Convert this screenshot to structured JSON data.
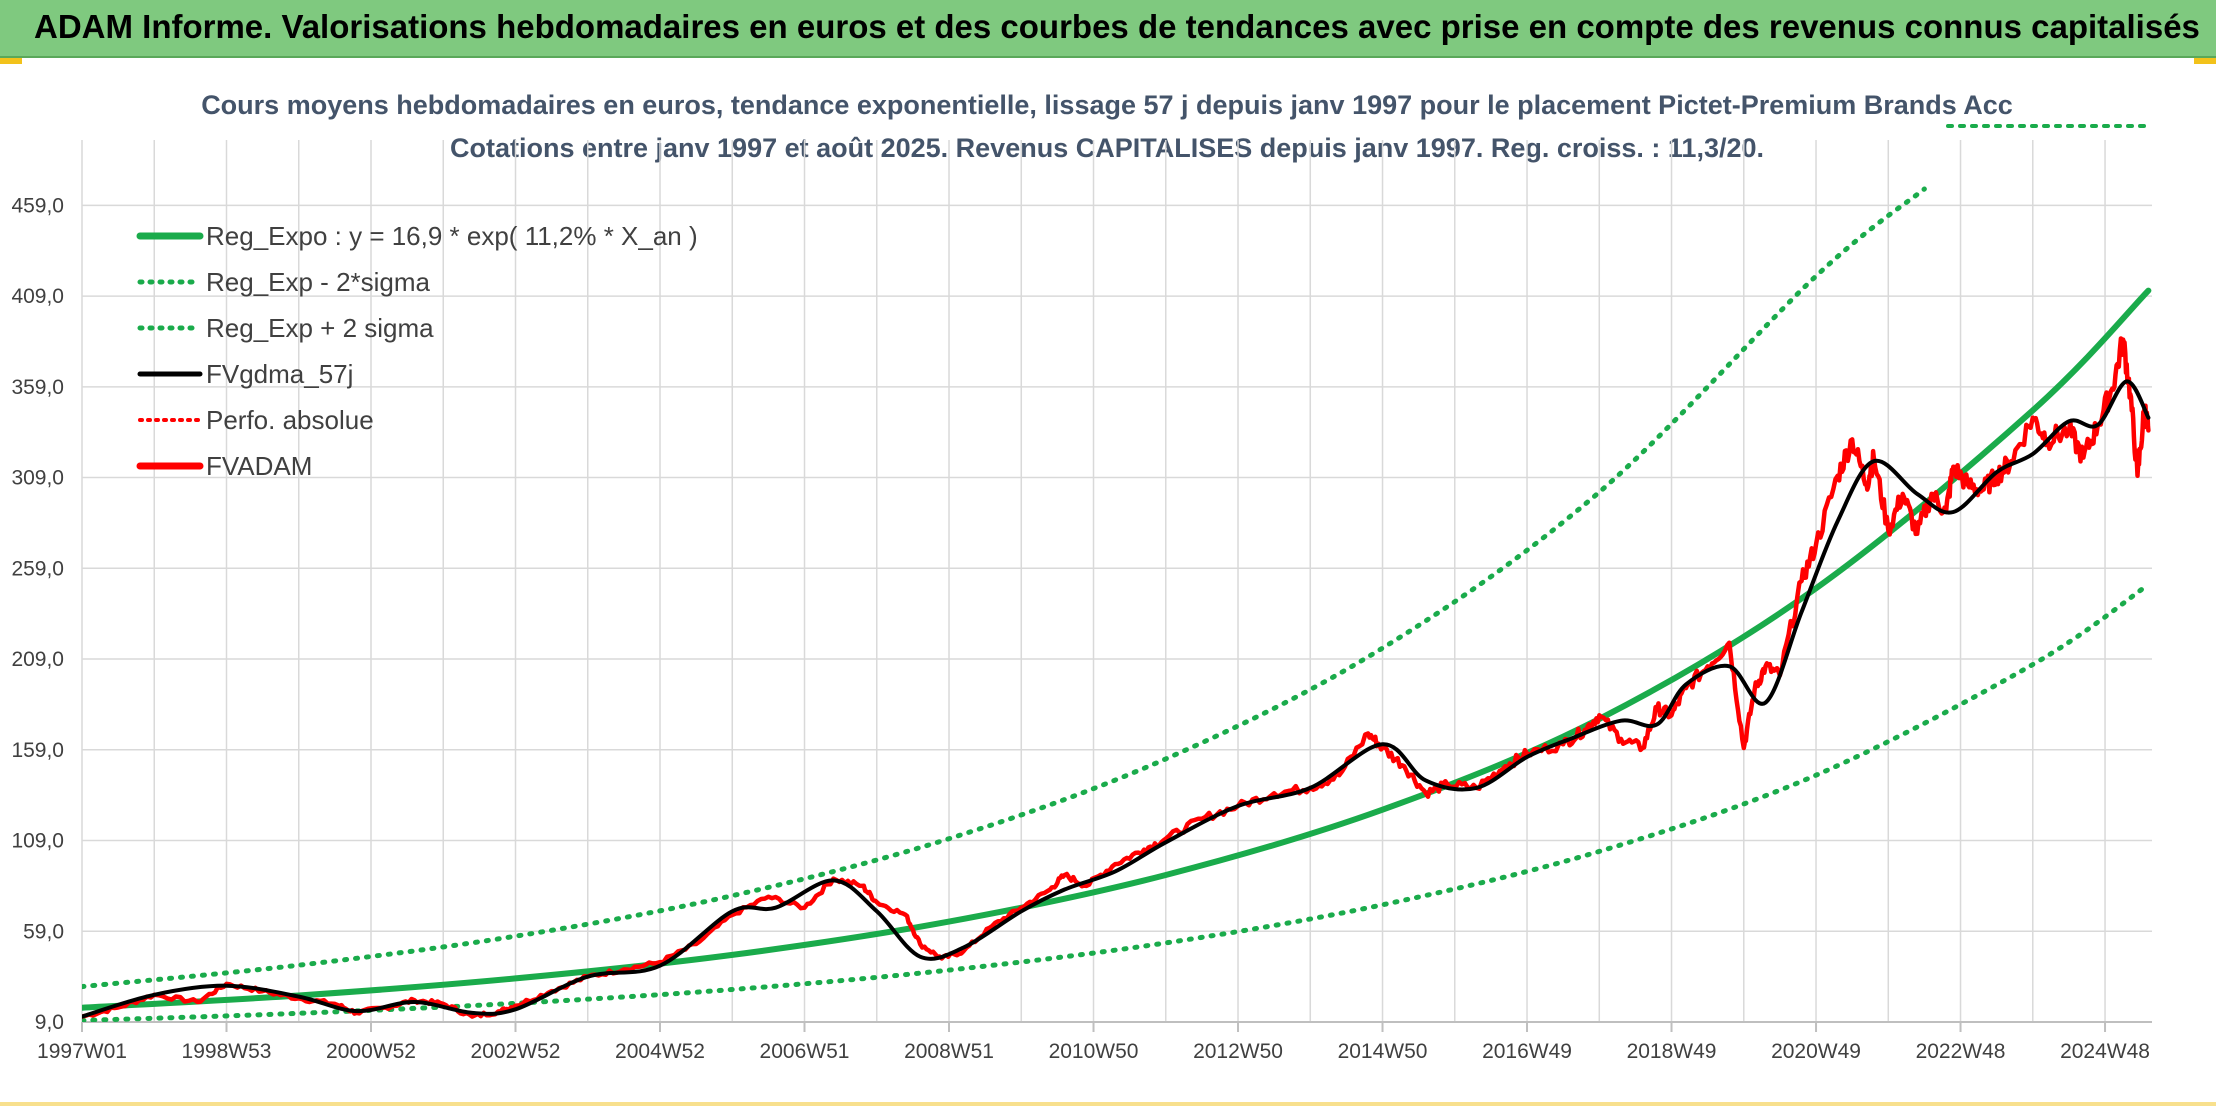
{
  "header": {
    "title": "ADAM Informe. Valorisations hebdomadaires en euros et des courbes de tendances avec prise en compte des revenus connus capitalisés"
  },
  "colors": {
    "header_bg": "#7fc97f",
    "trend_green": "#1aab4b",
    "smooth_black": "#000000",
    "fvadam_red": "#ff0000",
    "grid": "#d9d9d9",
    "text": "#404040"
  },
  "chart_data": {
    "type": "line",
    "title_line1": "Cours moyens hebdomadaires en euros, tendance exponentielle, lissage 57 j depuis janv 1997 pour le placement Pictet-Premium Brands Acc",
    "title_line2": "Cotations entre janv 1997 et août 2025. Revenus CAPITALISES depuis janv 1997. Reg. croiss. : 11,3/20.",
    "xlabel": "",
    "ylabel": "",
    "ylim": [
      9,
      495
    ],
    "yticks": [
      "9,0",
      "59,0",
      "109,0",
      "159,0",
      "209,0",
      "259,0",
      "309,0",
      "359,0",
      "409,0",
      "459,0"
    ],
    "ytick_values": [
      9,
      59,
      109,
      159,
      209,
      259,
      309,
      359,
      409,
      459
    ],
    "xlim": [
      1997.0,
      2025.65
    ],
    "xticks": [
      "1997W01",
      "1998W53",
      "2000W52",
      "2002W52",
      "2004W52",
      "2006W51",
      "2008W51",
      "2010W50",
      "2012W50",
      "2014W50",
      "2016W49",
      "2018W49",
      "2020W49",
      "2022W48",
      "2024W48"
    ],
    "xtick_values": [
      1997.0,
      1999.0,
      2001.0,
      2003.0,
      2005.0,
      2007.0,
      2009.0,
      2011.0,
      2013.0,
      2015.0,
      2017.0,
      2019.0,
      2021.0,
      2023.0,
      2025.0
    ],
    "grid": true,
    "legend_position": "top-left",
    "series": [
      {
        "name": "Reg_Expo : y = 16,9 * exp( 11,2% *  X_an )",
        "style": "solid",
        "color": "#1aab4b",
        "x": [
          1997.0,
          2000.0,
          2003.0,
          2006.0,
          2009.0,
          2012.0,
          2015.0,
          2018.0,
          2021.0,
          2024.0,
          2025.6
        ],
        "y": [
          16.9,
          23.6,
          33.0,
          46.0,
          64.3,
          90,
          126,
          176,
          248,
          346,
          412
        ]
      },
      {
        "name": "Reg_Exp - 2*sigma",
        "style": "dotted",
        "color": "#1aab4b",
        "x": [
          1997.0,
          2000.0,
          2003.0,
          2006.0,
          2009.0,
          2012.0,
          2015.0,
          2018.0,
          2021.0,
          2024.0,
          2025.6
        ],
        "y": [
          9.8,
          13.8,
          19.3,
          26.9,
          37.6,
          52.6,
          73.6,
          103,
          145,
          206,
          250
        ]
      },
      {
        "name": "Reg_Exp + 2 sigma",
        "style": "dotted",
        "color": "#1aab4b",
        "x": [
          1997.0,
          2000.0,
          2003.0,
          2006.0,
          2009.0,
          2012.0,
          2015.0,
          2018.0,
          2021.0,
          2022.5
        ],
        "y": [
          28.5,
          40.3,
          56.3,
          78.6,
          110,
          154,
          215,
          301,
          420,
          468
        ]
      },
      {
        "name": "FVgdma_57j",
        "style": "solid",
        "color": "#000000",
        "x": [
          1997.0,
          1998.0,
          1999.0,
          2000.0,
          2000.8,
          2001.6,
          2002.4,
          2003.0,
          2004.0,
          2005.0,
          2006.0,
          2006.6,
          2007.4,
          2008.0,
          2008.6,
          2009.2,
          2010.0,
          2010.6,
          2011.3,
          2012.0,
          2013.0,
          2014.0,
          2015.0,
          2015.6,
          2016.3,
          2017.0,
          2017.6,
          2018.3,
          2018.8,
          2019.2,
          2019.8,
          2020.3,
          2020.8,
          2021.3,
          2021.8,
          2022.4,
          2022.9,
          2023.5,
          2024.0,
          2024.5,
          2024.9,
          2025.3,
          2025.6
        ],
        "y": [
          12,
          24,
          29,
          23,
          15,
          20,
          14,
          16,
          34,
          40,
          70,
          72,
          87,
          70,
          45,
          50,
          70,
          82,
          92,
          108,
          128,
          138,
          162,
          142,
          138,
          155,
          165,
          175,
          173,
          195,
          205,
          185,
          235,
          285,
          318,
          300,
          290,
          312,
          322,
          340,
          338,
          362,
          342
        ]
      },
      {
        "name": "Perfo. absolue",
        "style": "dotted",
        "color": "#ff0000",
        "x": [
          1997.0,
          1998.0,
          1999.0,
          2000.0,
          2000.8,
          2001.6,
          2002.4,
          2003.0,
          2004.0,
          2005.0,
          2006.0,
          2006.6,
          2007.4,
          2008.0,
          2008.6,
          2009.2,
          2010.0,
          2010.6,
          2011.3,
          2012.0,
          2013.0,
          2014.0,
          2015.0,
          2015.6,
          2016.3,
          2017.0,
          2017.6,
          2018.3,
          2018.8,
          2019.2,
          2019.8,
          2020.3,
          2020.8,
          2021.3,
          2021.8,
          2022.4,
          2022.9,
          2023.5,
          2024.0,
          2024.5,
          2024.9,
          2025.3,
          2025.6
        ],
        "y": [
          12,
          24,
          29,
          23,
          15,
          20,
          14,
          16,
          34,
          40,
          70,
          72,
          87,
          70,
          45,
          50,
          70,
          82,
          92,
          108,
          128,
          138,
          162,
          142,
          138,
          155,
          165,
          175,
          173,
          195,
          205,
          185,
          235,
          285,
          318,
          300,
          290,
          312,
          322,
          340,
          338,
          362,
          342
        ]
      },
      {
        "name": "FVADAM",
        "style": "solid",
        "color": "#ff0000",
        "x": [
          1997.0,
          1997.5,
          1998.0,
          1998.6,
          1999.0,
          1999.5,
          2000.0,
          2000.5,
          2000.8,
          2001.2,
          2001.6,
          2002.0,
          2002.4,
          2002.8,
          2003.0,
          2003.5,
          2004.0,
          2004.5,
          2005.0,
          2005.5,
          2006.0,
          2006.5,
          2007.0,
          2007.4,
          2007.8,
          2008.0,
          2008.4,
          2008.6,
          2008.9,
          2009.2,
          2009.6,
          2010.0,
          2010.4,
          2010.6,
          2010.9,
          2011.3,
          2011.7,
          2012.0,
          2012.5,
          2013.0,
          2013.5,
          2014.0,
          2014.4,
          2014.8,
          2015.0,
          2015.3,
          2015.6,
          2015.9,
          2016.3,
          2016.7,
          2017.0,
          2017.5,
          2017.8,
          2018.0,
          2018.3,
          2018.6,
          2018.8,
          2019.0,
          2019.2,
          2019.5,
          2019.8,
          2020.0,
          2020.15,
          2020.3,
          2020.5,
          2020.8,
          2021.0,
          2021.3,
          2021.5,
          2021.7,
          2021.8,
          2022.0,
          2022.2,
          2022.4,
          2022.6,
          2022.8,
          2022.9,
          2023.1,
          2023.3,
          2023.5,
          2023.7,
          2024.0,
          2024.2,
          2024.5,
          2024.7,
          2024.9,
          2025.1,
          2025.25,
          2025.35,
          2025.45,
          2025.55,
          2025.6
        ],
        "y": [
          12,
          17,
          24,
          20,
          30,
          26,
          22,
          19,
          14,
          17,
          21,
          19,
          12,
          15,
          18,
          26,
          34,
          38,
          42,
          52,
          68,
          78,
          72,
          88,
          84,
          75,
          68,
          52,
          44,
          48,
          62,
          72,
          82,
          90,
          84,
          96,
          104,
          110,
          121,
          128,
          135,
          138,
          145,
          168,
          160,
          150,
          135,
          140,
          138,
          150,
          157,
          162,
          170,
          178,
          165,
          160,
          182,
          178,
          193,
          205,
          218,
          160,
          192,
          205,
          200,
          252,
          272,
          310,
          330,
          305,
          320,
          280,
          300,
          278,
          300,
          290,
          315,
          305,
          302,
          310,
          318,
          342,
          330,
          335,
          320,
          338,
          358,
          385,
          355,
          310,
          348,
          335
        ]
      }
    ]
  }
}
